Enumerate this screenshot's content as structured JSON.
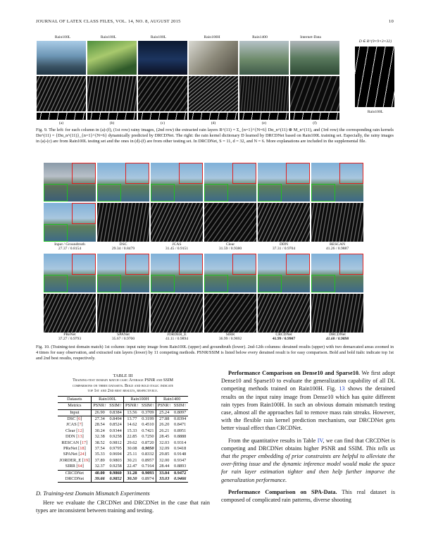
{
  "header": {
    "left": "JOURNAL OF LATEX CLASS FILES, VOL. 14, NO. 8, AUGUST 2015",
    "page": "10"
  },
  "fig9": {
    "col_titles": [
      "Rain100L",
      "Rain100L",
      "Rain100L",
      "Rain100H",
      "Rain1400",
      "Internet-Data"
    ],
    "letters": [
      "(a)",
      "(b)",
      "(c)",
      "(d)",
      "(e)",
      "(f)"
    ],
    "dict_label": "D ∈ R^{9×9×3×32}",
    "dict_caption": "Rain100L",
    "caption": "Fig. 9.  The left: for each column in (a)-(f), (1st row) rainy images, (2nd row) the extracted rain layers R^(11) = Σ_{n=1}^{N=6} Dα_n^(11) ⊗ M_n^(11), and (3rd row) the corresponding rain kernels Dα^(11) = {Dα_n^(11)}_{n=1}^{N=6} dynamically predicted by DRCDNet. The right: the rain kernel dictionary D learned by DRCDNet based on Rain100L training set. Especially, the rainy images in (a)-(c) are from Rain100L testing set and the ones in (d)-(f) are from other testing set. In DRCDNet, S = 11, d = 32, and N = 6. More explanations are included in the supplemental file."
  },
  "fig10": {
    "row1": [
      {
        "name": "Input / Groundtruth",
        "score": "27.37 / 0.8154"
      },
      {
        "name": "DSC",
        "score": "29.34 / 0.8479"
      },
      {
        "name": "JCAS",
        "score": "31.45 / 0.9151"
      },
      {
        "name": "Clear",
        "score": "31.59 / 0.9380"
      },
      {
        "name": "DDN",
        "score": "37.31 / 0.9704"
      },
      {
        "name": "RESCAN",
        "score": "41.26 / 0.9887"
      }
    ],
    "row2": [
      {
        "name": "PReNet",
        "score": "37.27 / 0.9793"
      },
      {
        "name": "SPANet",
        "score": "35.67 / 0.9700"
      },
      {
        "name": "JORDER_E",
        "score": "41.11 / 0.9894"
      },
      {
        "name": "SIRR",
        "score": "36.99 / 0.9692"
      },
      {
        "name": "CRCDNet",
        "score": "41.99 / 0.9907"
      },
      {
        "name": "DRCDNet",
        "score": "41.68 / 0.9898"
      }
    ],
    "caption": "Fig. 10.  (Training-test domain match) 1st column: input rainy image from Rain100L (upper) and groundtruth (lower). 2nd-12th columns: derained results (upper) with two demarcated areas zoomed in 4 times for easy observation, and extracted rain layers (lower) by 11 competing methods. PSNR/SSIM is listed below every derained result is for easy comparison. Bold and bold italic indicate top 1st and 2nd best results, respectively."
  },
  "table3": {
    "title": "TABLE III",
    "caption_lines": [
      "Training-test domain match case: Average PSNR and SSIM",
      "comparisons on three datasets. Bold and bold italic indicate",
      "top 1st and 2nd best results, respectively."
    ],
    "datasets_label": "Datasets",
    "datasets": [
      "Rain100L",
      "Rain100H",
      "Rain1400"
    ],
    "metrics_label": "Metrics",
    "metrics": [
      "PSNR↑",
      "SSIM↑",
      "PSNR↑",
      "SSIM↑",
      "PSNR↑",
      "SSIM↑"
    ],
    "rows": [
      {
        "method": "Input",
        "ref": "",
        "vals": [
          "26.90",
          "0.8384",
          "13.56",
          "0.3709",
          "25.24",
          "0.8097"
        ]
      },
      {
        "method": "DSC",
        "ref": "6",
        "vals": [
          "27.34",
          "0.8494",
          "13.77",
          "0.3199",
          "27.88",
          "0.8394"
        ]
      },
      {
        "method": "JCAS",
        "ref": "7",
        "vals": [
          "28.54",
          "0.8524",
          "14.62",
          "0.4510",
          "26.20",
          "0.8471"
        ]
      },
      {
        "method": "Clear",
        "ref": "12",
        "vals": [
          "30.24",
          "0.9344",
          "15.33",
          "0.7421",
          "26.21",
          "0.8951"
        ]
      },
      {
        "method": "DDN",
        "ref": "13",
        "vals": [
          "32.38",
          "0.9258",
          "22.85",
          "0.7250",
          "28.45",
          "0.8888"
        ]
      },
      {
        "method": "RESCAN",
        "ref": "17",
        "vals": [
          "38.52",
          "0.9812",
          "29.62",
          "0.8720",
          "32.03",
          "0.9314"
        ]
      },
      {
        "method": "PReNet",
        "ref": "18",
        "vals": [
          "37.54",
          "0.9795",
          "30.08",
          "0.9050",
          "32.09",
          "0.9418"
        ]
      },
      {
        "method": "SPANet",
        "ref": "24",
        "vals": [
          "35.33",
          "0.9694",
          "25.11",
          "0.8332",
          "29.85",
          "0.9148"
        ]
      },
      {
        "method": "JORDER_E",
        "ref": "19",
        "vals": [
          "37.89",
          "0.9803",
          "30.21",
          "0.8957",
          "32.00",
          "0.9347"
        ]
      },
      {
        "method": "SIRR",
        "ref": "64",
        "vals": [
          "32.37",
          "0.9258",
          "22.47",
          "0.7164",
          "28.44",
          "0.8893"
        ]
      },
      {
        "method": "CRCDNet",
        "ref": "",
        "vals": [
          "40.00",
          "0.9860",
          "31.28",
          "0.9093",
          "33.04",
          "0.9472"
        ]
      },
      {
        "method": "DRCDNet",
        "ref": "",
        "vals": [
          "39.66",
          "0.9852",
          "30.50",
          "0.8974",
          "33.03",
          "0.9466"
        ]
      }
    ]
  },
  "section_d": {
    "heading": "D.  Training-test Domain Mismatch Experiments",
    "text": "Here we evaluate the CRCDNet and DRCDNet in the case that rain types are inconsistent between training and testing."
  },
  "right_col": {
    "p1_lead": "Performance Comparison on Dense10 and Sparse10.",
    "p1_a": " We first adopt Dense10 and Sparse10 to evaluate the generalization capability of all DL competing methods trained on Rain100H. Fig. ",
    "p1_fig": "13",
    "p1_b": " shows the derained results on the input rainy image from Dense10 which has quite different rain types from Rain100H. In such an obvious domain mismatch testing case, almost all the approaches fail to remove mass rain streaks. However, with the flexible rain kernel prediction mechanism, our DRCDNet gets better visual effect than CRCDNet.",
    "p2_a": "From the quantitative results in Table ",
    "p2_tab": "IV",
    "p2_b": ", we can find that CRCDNet is competing and DRCDNet obtains higher PSNR and SSIM. ",
    "p2_it": "This tells us that the proper embedding of prior constraints are helpful to alleviate the over-fitting issue and the dynamic inference model would make the space for rain layer estimation tighter and then help further imporve the generalization performance.",
    "p3_lead": "Performance Comparison on SPA-Data.",
    "p3_a": " This real dataset is composed of complicated rain patterns, diverse shooting"
  }
}
